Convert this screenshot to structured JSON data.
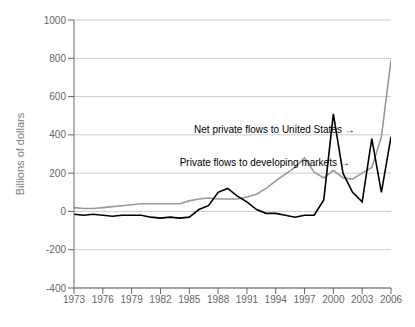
{
  "chart_data": {
    "type": "line",
    "x": [
      1973,
      1974,
      1975,
      1976,
      1977,
      1978,
      1979,
      1980,
      1981,
      1982,
      1983,
      1984,
      1985,
      1986,
      1987,
      1988,
      1989,
      1990,
      1991,
      1992,
      1993,
      1994,
      1995,
      1996,
      1997,
      1998,
      1999,
      2000,
      2001,
      2002,
      2003,
      2004,
      2005,
      2006
    ],
    "series": [
      {
        "color": "#999999",
        "values": [
          20,
          15,
          15,
          20,
          25,
          30,
          35,
          40,
          40,
          40,
          40,
          40,
          55,
          65,
          70,
          65,
          65,
          65,
          75,
          90,
          120,
          160,
          195,
          230,
          280,
          205,
          175,
          215,
          175,
          170,
          200,
          230,
          390,
          790
        ]
      },
      {
        "color": "#000000",
        "values": [
          -15,
          -20,
          -15,
          -20,
          -25,
          -20,
          -20,
          -20,
          -30,
          -35,
          -30,
          -35,
          -30,
          10,
          30,
          100,
          120,
          80,
          50,
          10,
          -10,
          -10,
          -20,
          -30,
          -20,
          -20,
          60,
          510,
          200,
          100,
          50,
          380,
          100,
          390
        ]
      }
    ],
    "ylabel": "Billions of dollars",
    "xlim": [
      1973,
      2006
    ],
    "xticks": [
      1973,
      1976,
      1979,
      1982,
      1985,
      1988,
      1991,
      1994,
      1997,
      2000,
      2003,
      2006
    ],
    "ylim": [
      -400,
      1000
    ],
    "yticks": [
      -400,
      -200,
      0,
      200,
      400,
      600,
      800,
      1000
    ],
    "grid": true,
    "annotations": [
      {
        "text": "Net private flows to United States →",
        "x": 1985.5,
        "y": 430
      },
      {
        "text": "Private flows to developing markets →",
        "x": 1984.0,
        "y": 255
      }
    ]
  }
}
